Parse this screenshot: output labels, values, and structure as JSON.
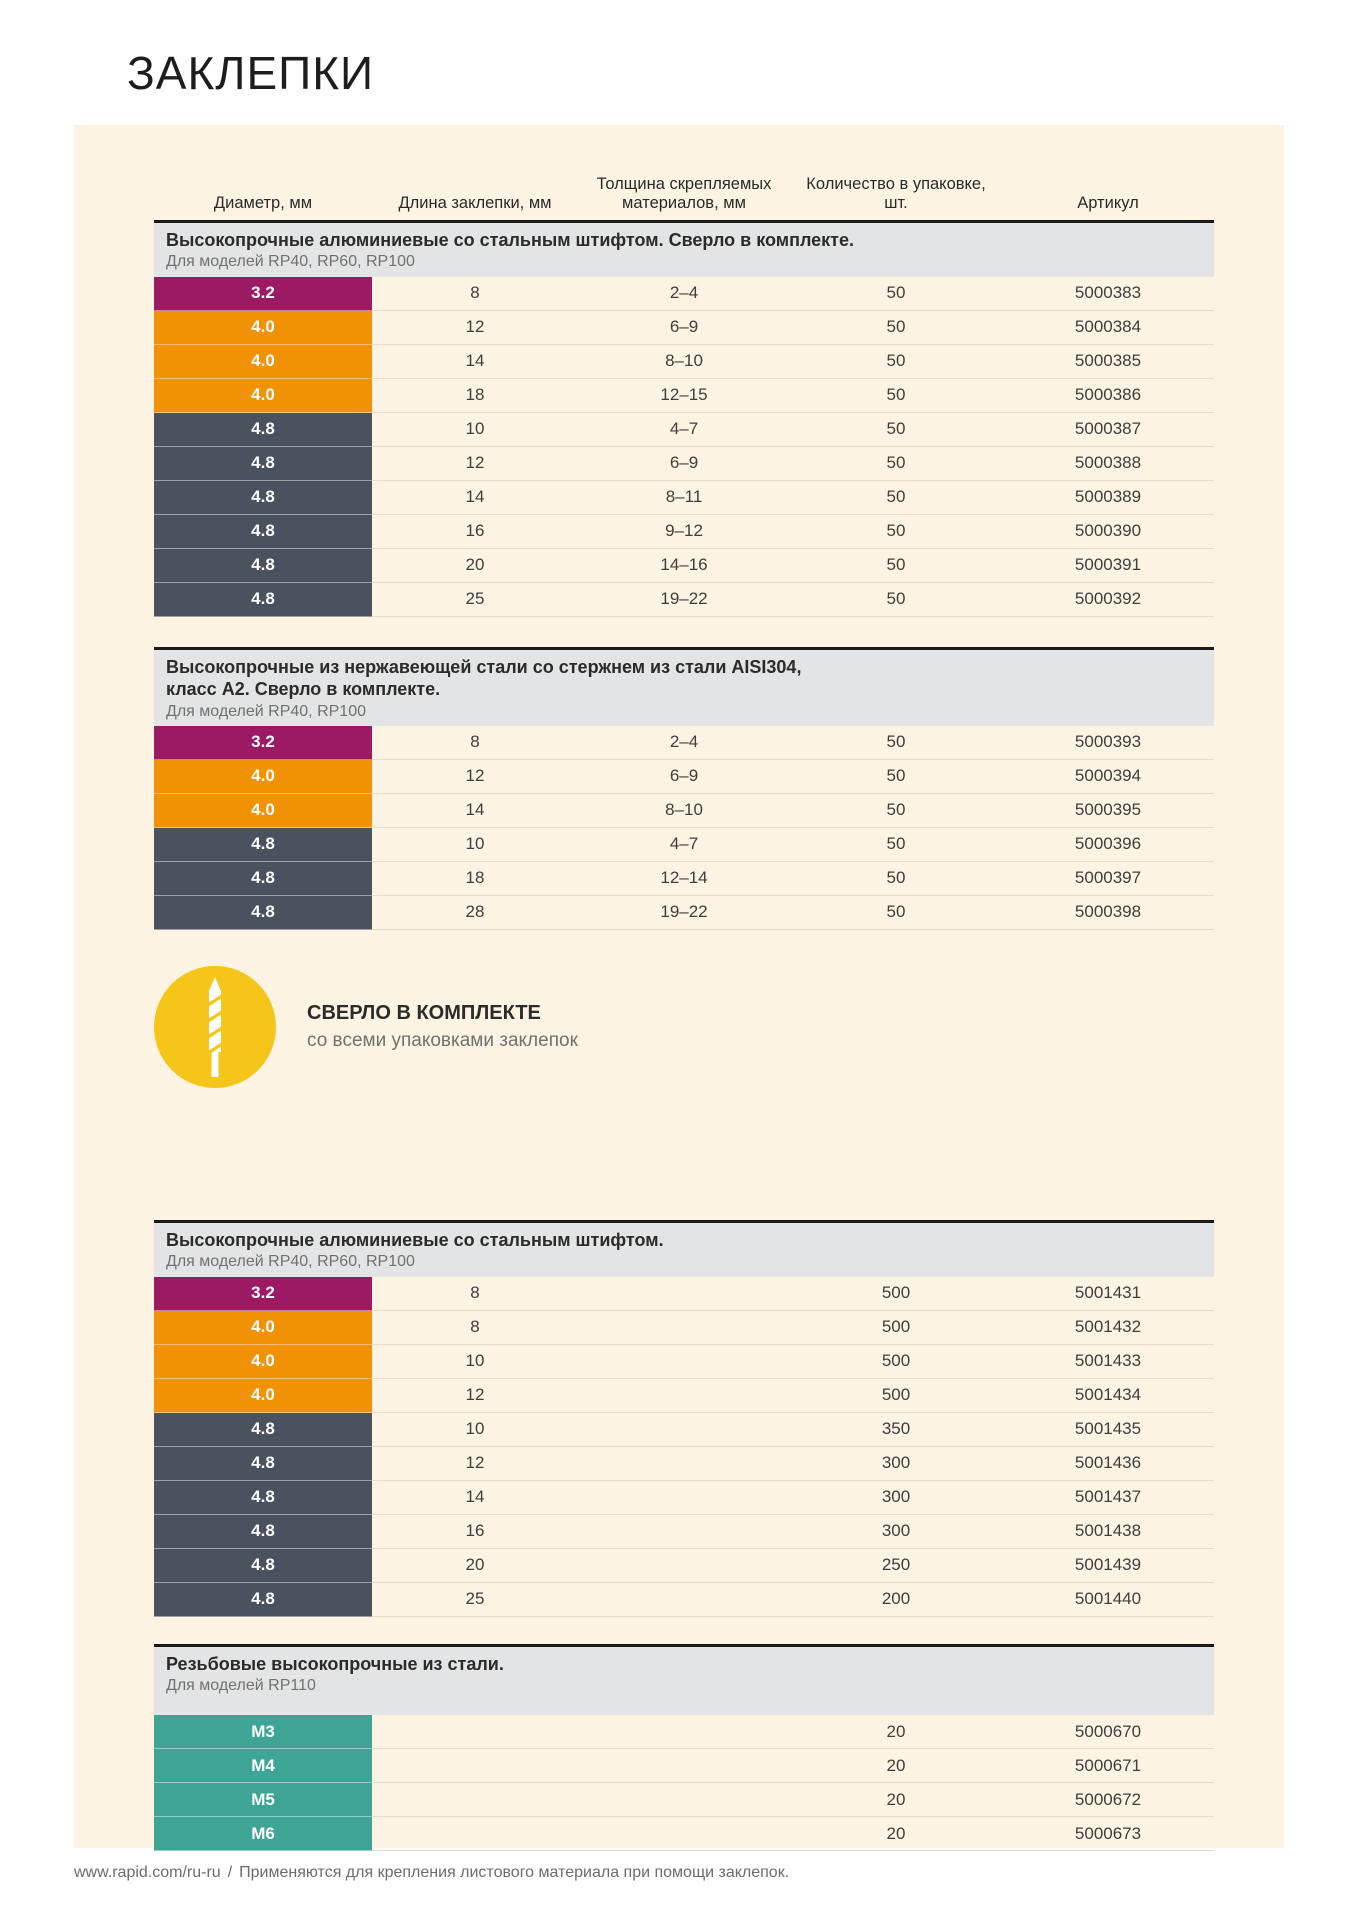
{
  "page_title": "ЗАКЛЕПКИ",
  "columns": [
    "Диаметр, мм",
    "Длина заклепки, мм",
    "Толщина скрепляемых материалов, мм",
    "Количество в упаковке, шт.",
    "Артикул"
  ],
  "colors": {
    "magenta": "#9B1A63",
    "orange": "#F09204",
    "slate": "#49525E",
    "teal": "#3EA495",
    "badge_yellow": "#F6C51A",
    "panel_cream": "#FCF3E2",
    "band_gray": "#E3E4E6"
  },
  "sections": [
    {
      "title": "Высокопрочные алюминиевые со стальным штифтом. Сверло в комплекте.",
      "subtitle": "Для моделей RP40, RP60, RP100",
      "rows": [
        {
          "diameter": "3.2",
          "color": "magenta",
          "length": "8",
          "thickness": "2–4",
          "qty": "50",
          "sku": "5000383"
        },
        {
          "diameter": "4.0",
          "color": "orange",
          "length": "12",
          "thickness": "6–9",
          "qty": "50",
          "sku": "5000384"
        },
        {
          "diameter": "4.0",
          "color": "orange",
          "length": "14",
          "thickness": "8–10",
          "qty": "50",
          "sku": "5000385"
        },
        {
          "diameter": "4.0",
          "color": "orange",
          "length": "18",
          "thickness": "12–15",
          "qty": "50",
          "sku": "5000386"
        },
        {
          "diameter": "4.8",
          "color": "slate",
          "length": "10",
          "thickness": "4–7",
          "qty": "50",
          "sku": "5000387"
        },
        {
          "diameter": "4.8",
          "color": "slate",
          "length": "12",
          "thickness": "6–9",
          "qty": "50",
          "sku": "5000388"
        },
        {
          "diameter": "4.8",
          "color": "slate",
          "length": "14",
          "thickness": "8–11",
          "qty": "50",
          "sku": "5000389"
        },
        {
          "diameter": "4.8",
          "color": "slate",
          "length": "16",
          "thickness": "9–12",
          "qty": "50",
          "sku": "5000390"
        },
        {
          "diameter": "4.8",
          "color": "slate",
          "length": "20",
          "thickness": "14–16",
          "qty": "50",
          "sku": "5000391"
        },
        {
          "diameter": "4.8",
          "color": "slate",
          "length": "25",
          "thickness": "19–22",
          "qty": "50",
          "sku": "5000392"
        }
      ]
    },
    {
      "title": "Высокопрочные из нержавеющей стали со стержнем из стали AISI304,\nкласс А2. Сверло в комплекте.",
      "subtitle": "Для моделей RP40, RP100",
      "rows": [
        {
          "diameter": "3.2",
          "color": "magenta",
          "length": "8",
          "thickness": "2–4",
          "qty": "50",
          "sku": "5000393"
        },
        {
          "diameter": "4.0",
          "color": "orange",
          "length": "12",
          "thickness": "6–9",
          "qty": "50",
          "sku": "5000394"
        },
        {
          "diameter": "4.0",
          "color": "orange",
          "length": "14",
          "thickness": "8–10",
          "qty": "50",
          "sku": "5000395"
        },
        {
          "diameter": "4.8",
          "color": "slate",
          "length": "10",
          "thickness": "4–7",
          "qty": "50",
          "sku": "5000396"
        },
        {
          "diameter": "4.8",
          "color": "slate",
          "length": "18",
          "thickness": "12–14",
          "qty": "50",
          "sku": "5000397"
        },
        {
          "diameter": "4.8",
          "color": "slate",
          "length": "28",
          "thickness": "19–22",
          "qty": "50",
          "sku": "5000398"
        }
      ]
    },
    {
      "title": "Высокопрочные алюминиевые со стальным штифтом.",
      "subtitle": "Для моделей RP40, RP60, RP100",
      "rows": [
        {
          "diameter": "3.2",
          "color": "magenta",
          "length": "8",
          "thickness": "",
          "qty": "500",
          "sku": "5001431"
        },
        {
          "diameter": "4.0",
          "color": "orange",
          "length": "8",
          "thickness": "",
          "qty": "500",
          "sku": "5001432"
        },
        {
          "diameter": "4.0",
          "color": "orange",
          "length": "10",
          "thickness": "",
          "qty": "500",
          "sku": "5001433"
        },
        {
          "diameter": "4.0",
          "color": "orange",
          "length": "12",
          "thickness": "",
          "qty": "500",
          "sku": "5001434"
        },
        {
          "diameter": "4.8",
          "color": "slate",
          "length": "10",
          "thickness": "",
          "qty": "350",
          "sku": "5001435"
        },
        {
          "diameter": "4.8",
          "color": "slate",
          "length": "12",
          "thickness": "",
          "qty": "300",
          "sku": "5001436"
        },
        {
          "diameter": "4.8",
          "color": "slate",
          "length": "14",
          "thickness": "",
          "qty": "300",
          "sku": "5001437"
        },
        {
          "diameter": "4.8",
          "color": "slate",
          "length": "16",
          "thickness": "",
          "qty": "300",
          "sku": "5001438"
        },
        {
          "diameter": "4.8",
          "color": "slate",
          "length": "20",
          "thickness": "",
          "qty": "250",
          "sku": "5001439"
        },
        {
          "diameter": "4.8",
          "color": "slate",
          "length": "25",
          "thickness": "",
          "qty": "200",
          "sku": "5001440"
        }
      ]
    },
    {
      "title": "Резьбовые высокопрочные из стали.",
      "subtitle": "Для моделей RP110",
      "rows": [
        {
          "diameter": "M3",
          "color": "teal",
          "length": "",
          "thickness": "",
          "qty": "20",
          "sku": "5000670"
        },
        {
          "diameter": "M4",
          "color": "teal",
          "length": "",
          "thickness": "",
          "qty": "20",
          "sku": "5000671"
        },
        {
          "diameter": "M5",
          "color": "teal",
          "length": "",
          "thickness": "",
          "qty": "20",
          "sku": "5000672"
        },
        {
          "diameter": "M6",
          "color": "teal",
          "length": "",
          "thickness": "",
          "qty": "20",
          "sku": "5000673"
        }
      ]
    }
  ],
  "badge": {
    "icon": "drill-bit-icon",
    "label": "СВЕРЛО В КОМПЛЕКТЕ",
    "sublabel": "со всеми упаковками заклепок"
  },
  "footer": {
    "url": "www.rapid.com/ru-ru",
    "separator": "/",
    "note": "Применяются для крепления листового материала при помощи заклепок."
  }
}
